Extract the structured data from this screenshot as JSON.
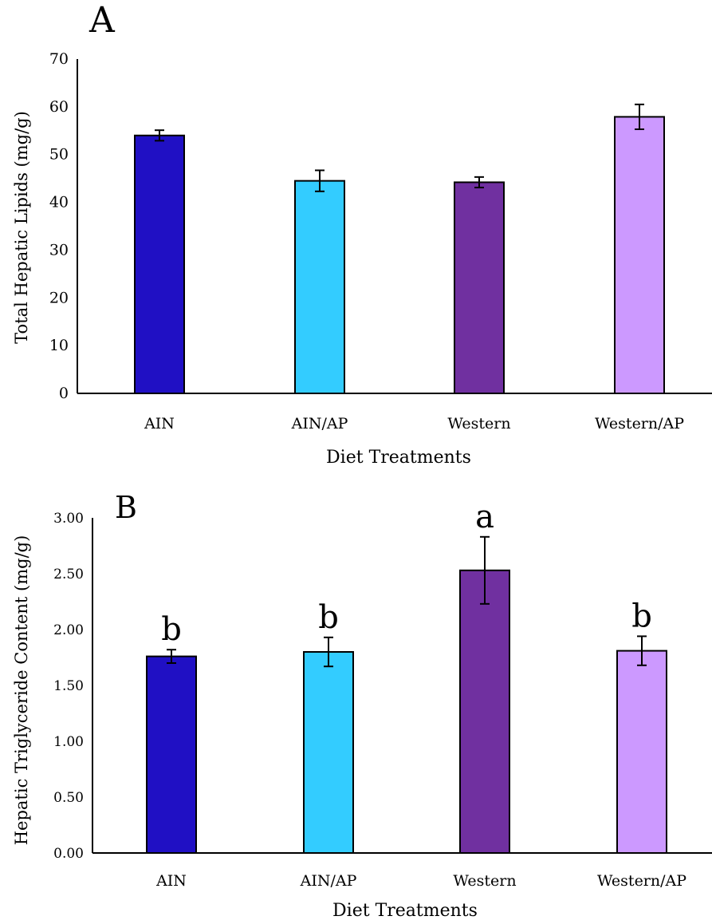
{
  "chart_data": [
    {
      "type": "bar",
      "panel_label": "A",
      "categories": [
        "AIN",
        "AIN/AP",
        "Western",
        "Western/AP"
      ],
      "values": [
        54.0,
        44.5,
        44.2,
        57.9
      ],
      "errors": [
        1.1,
        2.2,
        1.1,
        2.6
      ],
      "significance": [
        "",
        "",
        "",
        ""
      ],
      "xlabel": "Diet Treatments",
      "ylabel": "Total Hepatic Lipids (mg/g)",
      "ylim": [
        0,
        70
      ],
      "yticks": [
        "0",
        "10",
        "20",
        "30",
        "40",
        "50",
        "60",
        "70"
      ],
      "colors": [
        "#2010c4",
        "#33ccff",
        "#7030a0",
        "#cc99ff"
      ],
      "grid": false
    },
    {
      "type": "bar",
      "panel_label": "B",
      "categories": [
        "AIN",
        "AIN/AP",
        "Western",
        "Western/AP"
      ],
      "values": [
        1.76,
        1.8,
        2.53,
        1.81
      ],
      "errors": [
        0.06,
        0.13,
        0.3,
        0.13
      ],
      "significance": [
        "b",
        "b",
        "a",
        "b"
      ],
      "xlabel": "Diet Treatments",
      "ylabel": "Hepatic Triglyceride Content (mg/g)",
      "ylim": [
        0,
        3
      ],
      "yticks": [
        "0.00",
        "0.50",
        "1.00",
        "1.50",
        "2.00",
        "2.50",
        "3.00"
      ],
      "colors": [
        "#2010c4",
        "#33ccff",
        "#7030a0",
        "#cc99ff"
      ],
      "grid": false
    }
  ]
}
